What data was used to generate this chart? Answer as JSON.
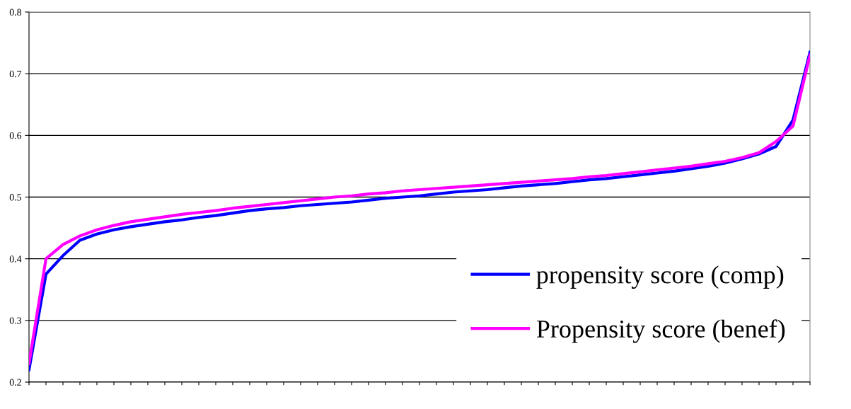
{
  "chart_data": {
    "type": "line",
    "categories": [
      null,
      null,
      null,
      null,
      null,
      null,
      null,
      null,
      null,
      null,
      null,
      null,
      null,
      null,
      null,
      null,
      null,
      null,
      null,
      null,
      null,
      null,
      null,
      null,
      null,
      null,
      null,
      null,
      null,
      null,
      null,
      null,
      null,
      null,
      null,
      null,
      null,
      null,
      null,
      null,
      null,
      null,
      null,
      null,
      null,
      null,
      null
    ],
    "series": [
      {
        "name": "propensity score (comp)",
        "color": "#0000ff",
        "values": [
          0.22,
          0.375,
          0.405,
          0.43,
          0.44,
          0.447,
          0.452,
          0.456,
          0.46,
          0.463,
          0.467,
          0.47,
          0.474,
          0.478,
          0.481,
          0.483,
          0.486,
          0.488,
          0.49,
          0.492,
          0.495,
          0.498,
          0.5,
          0.502,
          0.505,
          0.508,
          0.51,
          0.512,
          0.515,
          0.518,
          0.52,
          0.522,
          0.525,
          0.528,
          0.53,
          0.533,
          0.536,
          0.539,
          0.542,
          0.546,
          0.55,
          0.555,
          0.562,
          0.57,
          0.582,
          0.625,
          0.735
        ]
      },
      {
        "name": "Propensity score (benef)",
        "color": "#ff00ff",
        "values": [
          0.23,
          0.4,
          0.423,
          0.437,
          0.447,
          0.454,
          0.46,
          0.464,
          0.468,
          0.472,
          0.475,
          0.478,
          0.482,
          0.485,
          0.488,
          0.491,
          0.494,
          0.497,
          0.5,
          0.502,
          0.505,
          0.507,
          0.51,
          0.512,
          0.514,
          0.516,
          0.518,
          0.52,
          0.522,
          0.524,
          0.526,
          0.528,
          0.53,
          0.533,
          0.535,
          0.538,
          0.541,
          0.544,
          0.547,
          0.55,
          0.554,
          0.558,
          0.564,
          0.572,
          0.59,
          0.615,
          0.73
        ]
      }
    ],
    "ylim": [
      0.2,
      0.8
    ],
    "yticks": [
      0.2,
      0.3,
      0.4,
      0.5,
      0.6,
      0.7,
      0.8
    ],
    "grid": "y",
    "legend": "bottom right",
    "tick_labels": "y",
    "marker": "none",
    "line_style": "solid"
  }
}
